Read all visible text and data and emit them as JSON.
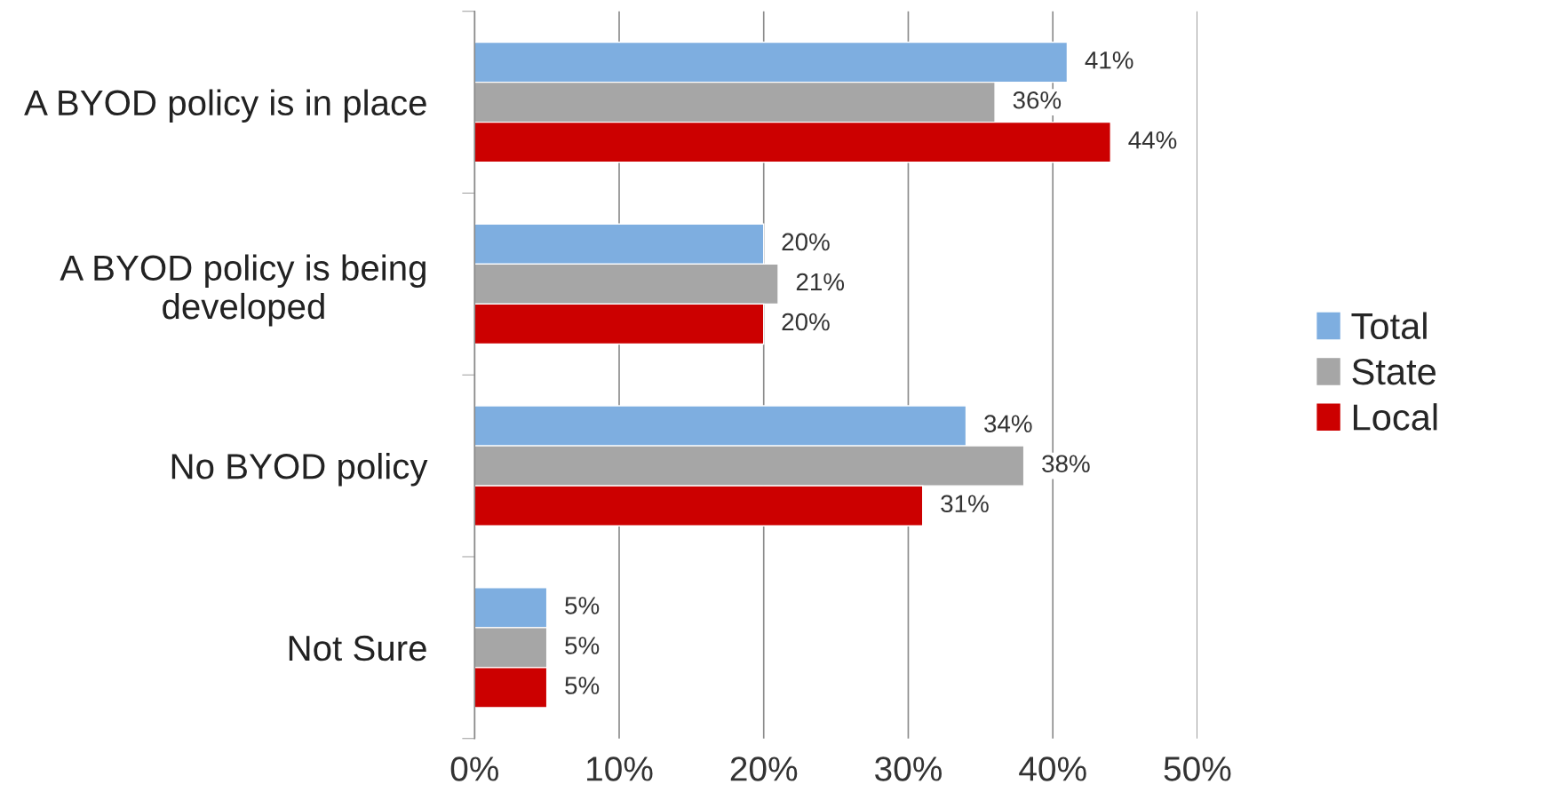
{
  "chart_data": {
    "type": "bar",
    "orientation": "horizontal",
    "categories": [
      "A BYOD policy is in place",
      "A BYOD policy is being\ndeveloped",
      "No BYOD policy",
      "Not Sure"
    ],
    "series": [
      {
        "name": "Total",
        "color": "#7eaee0",
        "values": [
          41,
          20,
          34,
          5
        ],
        "value_labels": [
          "41%",
          "20%",
          "34%",
          "5%"
        ]
      },
      {
        "name": "State",
        "color": "#a6a6a6",
        "values": [
          36,
          21,
          38,
          5
        ],
        "value_labels": [
          "36%",
          "21%",
          "38%",
          "5%"
        ]
      },
      {
        "name": "Local",
        "color": "#cc0000",
        "values": [
          44,
          20,
          31,
          5
        ],
        "value_labels": [
          "44%",
          "20%",
          "31%",
          "5%"
        ]
      }
    ],
    "xlim": [
      0,
      50
    ],
    "xticks": [
      {
        "value": 0,
        "label": "0%"
      },
      {
        "value": 10,
        "label": "10%"
      },
      {
        "value": 20,
        "label": "20%"
      },
      {
        "value": 30,
        "label": "30%"
      },
      {
        "value": 40,
        "label": "40%"
      },
      {
        "value": 50,
        "label": "50%"
      }
    ],
    "grid": "x",
    "legend": "right"
  }
}
